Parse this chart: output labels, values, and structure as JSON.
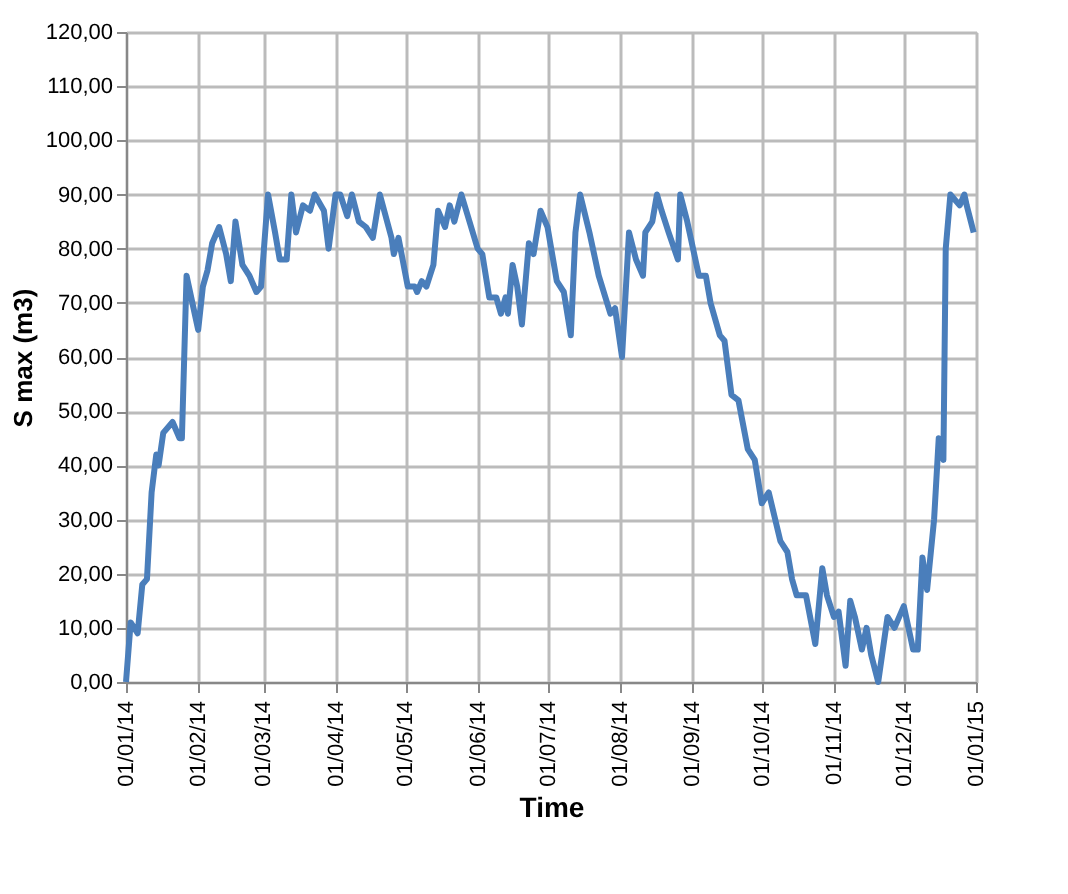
{
  "chart_data": {
    "type": "line",
    "xlabel": "Time",
    "ylabel": "S max (m3)",
    "x": [
      "2014-01-01",
      "2014-01-03",
      "2014-01-06",
      "2014-01-08",
      "2014-01-10",
      "2014-01-12",
      "2014-01-14",
      "2014-01-15",
      "2014-01-17",
      "2014-01-21",
      "2014-01-24",
      "2014-01-25",
      "2014-01-27",
      "2014-01-30",
      "2014-02-01",
      "2014-02-03",
      "2014-02-05",
      "2014-02-07",
      "2014-02-10",
      "2014-02-13",
      "2014-02-15",
      "2014-02-17",
      "2014-02-20",
      "2014-02-23",
      "2014-02-26",
      "2014-02-28",
      "2014-03-03",
      "2014-03-06",
      "2014-03-08",
      "2014-03-11",
      "2014-03-13",
      "2014-03-15",
      "2014-03-18",
      "2014-03-21",
      "2014-03-23",
      "2014-03-27",
      "2014-03-29",
      "2014-04-01",
      "2014-04-03",
      "2014-04-06",
      "2014-04-08",
      "2014-04-11",
      "2014-04-14",
      "2014-04-17",
      "2014-04-20",
      "2014-04-25",
      "2014-04-26",
      "2014-04-28",
      "2014-05-02",
      "2014-05-05",
      "2014-05-06",
      "2014-05-08",
      "2014-05-10",
      "2014-05-13",
      "2014-05-15",
      "2014-05-18",
      "2014-05-20",
      "2014-05-22",
      "2014-05-25",
      "2014-06-01",
      "2014-06-03",
      "2014-06-06",
      "2014-06-09",
      "2014-06-11",
      "2014-06-13",
      "2014-06-14",
      "2014-06-16",
      "2014-06-18",
      "2014-06-20",
      "2014-06-23",
      "2014-06-25",
      "2014-06-28",
      "2014-07-01",
      "2014-07-05",
      "2014-07-08",
      "2014-07-11",
      "2014-07-13",
      "2014-07-15",
      "2014-07-19",
      "2014-07-23",
      "2014-07-28",
      "2014-07-30",
      "2014-08-02",
      "2014-08-05",
      "2014-08-08",
      "2014-08-11",
      "2014-08-12",
      "2014-08-15",
      "2014-08-17",
      "2014-08-19",
      "2014-08-22",
      "2014-08-26",
      "2014-08-27",
      "2014-08-30",
      "2014-09-04",
      "2014-09-07",
      "2014-09-09",
      "2014-09-13",
      "2014-09-15",
      "2014-09-18",
      "2014-09-21",
      "2014-09-25",
      "2014-09-28",
      "2014-10-01",
      "2014-10-04",
      "2014-10-09",
      "2014-10-12",
      "2014-10-14",
      "2014-10-16",
      "2014-10-20",
      "2014-10-24",
      "2014-10-27",
      "2014-10-29",
      "2014-11-01",
      "2014-11-03",
      "2014-11-06",
      "2014-11-08",
      "2014-11-10",
      "2014-11-13",
      "2014-11-15",
      "2014-11-17",
      "2014-11-20",
      "2014-11-24",
      "2014-11-27",
      "2014-12-01",
      "2014-12-05",
      "2014-12-07",
      "2014-12-09",
      "2014-12-11",
      "2014-12-14",
      "2014-12-16",
      "2014-12-18",
      "2014-12-19",
      "2014-12-21",
      "2014-12-25",
      "2014-12-27",
      "2014-12-28",
      "2014-12-31"
    ],
    "series": [
      {
        "color": "#4a7ebb",
        "values": [
          0,
          11,
          9,
          18,
          19,
          35,
          42,
          40,
          46,
          48,
          45,
          45,
          75,
          69,
          65,
          73,
          76,
          81,
          84,
          79,
          74,
          85,
          77,
          75,
          72,
          73,
          90,
          83,
          78,
          78,
          90,
          83,
          88,
          87,
          90,
          87,
          80,
          90,
          90,
          86,
          90,
          85,
          84,
          82,
          90,
          82,
          79,
          82,
          73,
          73,
          72,
          74,
          73,
          77,
          87,
          84,
          88,
          85,
          90,
          80,
          79,
          71,
          71,
          68,
          71,
          68,
          77,
          73,
          66,
          81,
          79,
          87,
          84,
          74,
          72,
          64,
          83,
          90,
          83,
          75,
          68,
          69,
          60,
          83,
          78,
          75,
          83,
          85,
          90,
          87,
          83,
          78,
          90,
          85,
          75,
          75,
          70,
          64,
          63,
          53,
          52,
          43,
          41,
          33,
          35,
          26,
          24,
          19,
          16,
          16,
          7,
          21,
          16,
          12,
          13,
          3,
          15,
          12,
          6,
          10,
          5,
          0,
          12,
          10,
          14,
          6,
          6,
          23,
          17,
          30,
          45,
          41,
          80,
          90,
          88,
          90,
          88,
          83
        ]
      }
    ],
    "ylim": [
      0,
      120
    ],
    "yticks": [
      {
        "value": 0,
        "label": "0,00"
      },
      {
        "value": 10,
        "label": "10,00"
      },
      {
        "value": 20,
        "label": "20,00"
      },
      {
        "value": 30,
        "label": "30,00"
      },
      {
        "value": 40,
        "label": "40,00"
      },
      {
        "value": 50,
        "label": "50,00"
      },
      {
        "value": 60,
        "label": "60,00"
      },
      {
        "value": 70,
        "label": "70,00"
      },
      {
        "value": 80,
        "label": "80,00"
      },
      {
        "value": 90,
        "label": "90,00"
      },
      {
        "value": 100,
        "label": "100,00"
      },
      {
        "value": 110,
        "label": "110,00"
      },
      {
        "value": 120,
        "label": "120,00"
      }
    ],
    "xlim": [
      "2014-01-01",
      "2015-01-01"
    ],
    "xticks": [
      {
        "value": "2014-01-01",
        "label": "01/01/14"
      },
      {
        "value": "2014-02-01",
        "label": "01/02/14"
      },
      {
        "value": "2014-03-01",
        "label": "01/03/14"
      },
      {
        "value": "2014-04-01",
        "label": "01/04/14"
      },
      {
        "value": "2014-05-01",
        "label": "01/05/14"
      },
      {
        "value": "2014-06-01",
        "label": "01/06/14"
      },
      {
        "value": "2014-07-01",
        "label": "01/07/14"
      },
      {
        "value": "2014-08-01",
        "label": "01/08/14"
      },
      {
        "value": "2014-09-01",
        "label": "01/09/14"
      },
      {
        "value": "2014-10-01",
        "label": "01/10/14"
      },
      {
        "value": "2014-11-01",
        "label": "01/11/14"
      },
      {
        "value": "2014-12-01",
        "label": "01/12/14"
      },
      {
        "value": "2015-01-01",
        "label": "01/01/15"
      }
    ],
    "grid": true,
    "marker": "none",
    "line_style": "solid"
  }
}
